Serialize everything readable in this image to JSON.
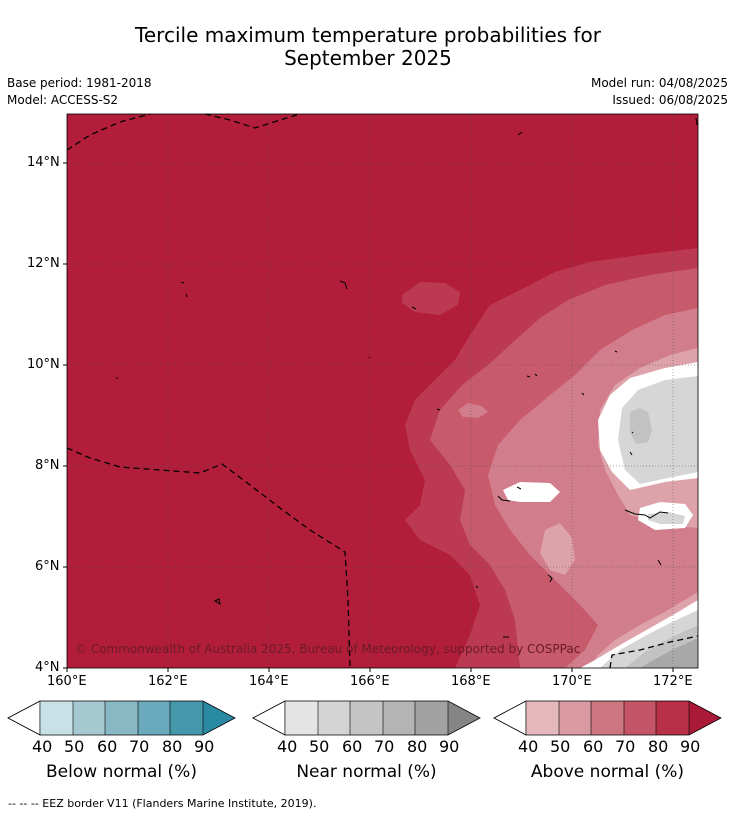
{
  "title_line1": "Tercile maximum temperature probabilities for",
  "title_line2": "September 2025",
  "meta": {
    "base_period": "Base period: 1981-2018",
    "model": "Model: ACCESS-S2",
    "model_run": "Model run: 04/08/2025",
    "issued": "Issued: 06/08/2025"
  },
  "lat_ticks": [
    "14°N",
    "12°N",
    "10°N",
    "8°N",
    "6°N",
    "4°N"
  ],
  "lon_ticks": [
    "160°E",
    "162°E",
    "164°E",
    "166°E",
    "168°E",
    "170°E",
    "172°E"
  ],
  "copyright": "© Commonwealth of Australia 2025, Bureau of Meteorology, supported by COSPPac",
  "colorbars": [
    {
      "title": "Below normal (%)",
      "labels": [
        "40",
        "50",
        "60",
        "70",
        "80",
        "90"
      ],
      "colors": [
        "#ffffff",
        "#c8e1e7",
        "#a6c9d1",
        "#89b8c5",
        "#6aa9bb",
        "#4597ab",
        "#2a8aa3"
      ]
    },
    {
      "title": "Near normal (%)",
      "labels": [
        "40",
        "50",
        "60",
        "70",
        "80",
        "90"
      ],
      "colors": [
        "#ffffff",
        "#e4e4e4",
        "#d4d4d4",
        "#c4c4c4",
        "#b4b4b4",
        "#a2a2a2",
        "#858585"
      ]
    },
    {
      "title": "Above normal (%)",
      "labels": [
        "40",
        "50",
        "60",
        "70",
        "80",
        "90"
      ],
      "colors": [
        "#ffffff",
        "#e4b8bd",
        "#d99aa2",
        "#cd7682",
        "#c45466",
        "#b83047",
        "#aa1a38"
      ]
    }
  ],
  "footer": "--  --  -- EEZ border V11 (Flanders Marine Institute, 2019).",
  "map_colors": {
    "a90": "#b21e39",
    "a80": "#bc3a51",
    "a70": "#c75a6b",
    "a60": "#d27d8b",
    "a50": "#dda2aa",
    "n50": "#d6d6d6",
    "n60": "#c2c2c2",
    "n70": "#a8a8a8"
  }
}
